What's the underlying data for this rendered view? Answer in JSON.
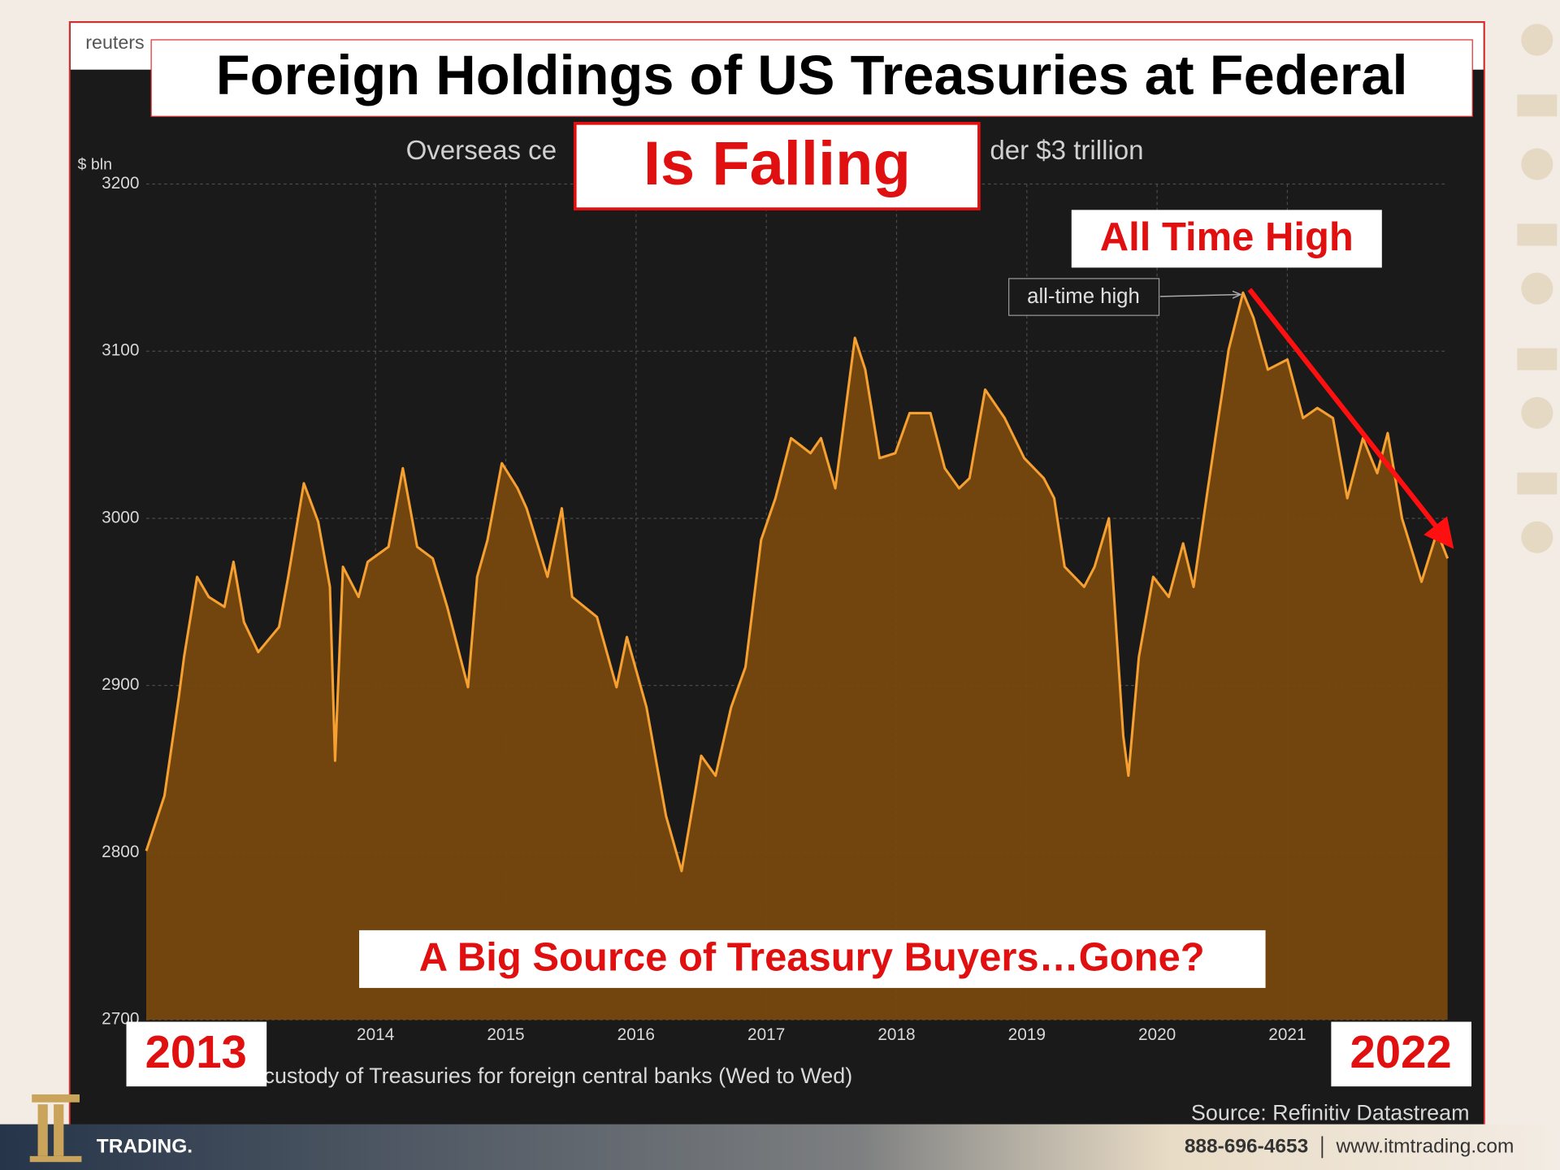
{
  "browser": {
    "url": "reuters"
  },
  "overlay": {
    "title": "Foreign Holdings of US Treasuries at Federal",
    "subtitle": "Is Falling",
    "callout": "All Time High",
    "question": "A Big Source of Treasury Buyers…Gone?",
    "start_label": "2013",
    "end_label": "2022"
  },
  "chart_data": {
    "type": "area",
    "subtitle_fragments": [
      "Overseas ce",
      "der $3 trillion"
    ],
    "y_label": "$ bln",
    "annotation": "all-time high",
    "note": "custody of Treasuries for foreign central banks (Wed to Wed)",
    "source": "Source: Refinitiv Datastream",
    "color": "#f5a030",
    "fill": "#77480f",
    "grid": true,
    "xlim": [
      2012.74,
      2022.73
    ],
    "ylim": [
      2700,
      3200
    ],
    "yticks": [
      2700,
      2800,
      2900,
      3000,
      3100,
      3200
    ],
    "xticks": [
      {
        "value": 2014.5,
        "label": "2014"
      },
      {
        "value": 2015.5,
        "label": "2015"
      },
      {
        "value": 2016.5,
        "label": "2016"
      },
      {
        "value": 2017.5,
        "label": "2017"
      },
      {
        "value": 2018.5,
        "label": "2018"
      },
      {
        "value": 2019.5,
        "label": "2019"
      },
      {
        "value": 2020.5,
        "label": "2020"
      },
      {
        "value": 2021.5,
        "label": "2021"
      }
    ],
    "x": [
      2012.74,
      2012.88,
      2012.99,
      2013.03,
      2013.13,
      2013.22,
      2013.34,
      2013.41,
      2013.49,
      2013.6,
      2013.76,
      2013.83,
      2013.95,
      2014.06,
      2014.15,
      2014.19,
      2014.25,
      2014.37,
      2014.44,
      2014.6,
      2014.71,
      2014.82,
      2014.94,
      2015.05,
      2015.21,
      2015.28,
      2015.36,
      2015.47,
      2015.59,
      2015.66,
      2015.82,
      2015.93,
      2016.01,
      2016.2,
      2016.35,
      2016.43,
      2016.58,
      2016.73,
      2016.85,
      2016.96,
      2017.0,
      2017.11,
      2017.23,
      2017.34,
      2017.46,
      2017.57,
      2017.69,
      2017.84,
      2017.92,
      2018.03,
      2018.18,
      2018.26,
      2018.37,
      2018.49,
      2018.6,
      2018.76,
      2018.87,
      2018.98,
      2019.06,
      2019.18,
      2019.33,
      2019.48,
      2019.63,
      2019.71,
      2019.79,
      2019.94,
      2020.02,
      2020.13,
      2020.24,
      2020.28,
      2020.36,
      2020.47,
      2020.59,
      2020.7,
      2020.78,
      2020.89,
      2020.97,
      2021.05,
      2021.16,
      2021.24,
      2021.35,
      2021.5,
      2021.62,
      2021.73,
      2021.85,
      2021.96,
      2022.08,
      2022.19,
      2022.27,
      2022.38,
      2022.53,
      2022.65,
      2022.73
    ],
    "values": [
      2801,
      2834,
      2893,
      2917,
      2965,
      2953,
      2947,
      2974,
      2938,
      2920,
      2935,
      2965,
      3021,
      2998,
      2959,
      2855,
      2971,
      2953,
      2974,
      2983,
      3030,
      2983,
      2976,
      2947,
      2899,
      2965,
      2987,
      3033,
      3018,
      3006,
      2965,
      3006,
      2953,
      2941,
      2899,
      2929,
      2887,
      2822,
      2789,
      2839,
      2858,
      2846,
      2887,
      2911,
      2987,
      3012,
      3048,
      3039,
      3048,
      3018,
      3108,
      3089,
      3036,
      3039,
      3063,
      3063,
      3030,
      3018,
      3024,
      3077,
      3060,
      3036,
      3024,
      3012,
      2971,
      2959,
      2971,
      3000,
      2870,
      2846,
      2917,
      2965,
      2953,
      2985,
      2959,
      3018,
      3060,
      3101,
      3135,
      3120,
      3089,
      3095,
      3060,
      3066,
      3060,
      3012,
      3048,
      3027,
      3051,
      3000,
      2962,
      2992,
      2976
    ]
  },
  "footer": {
    "brand": "TRADING.",
    "phone": "888-696-4653",
    "website": "www.itmtrading.com"
  }
}
